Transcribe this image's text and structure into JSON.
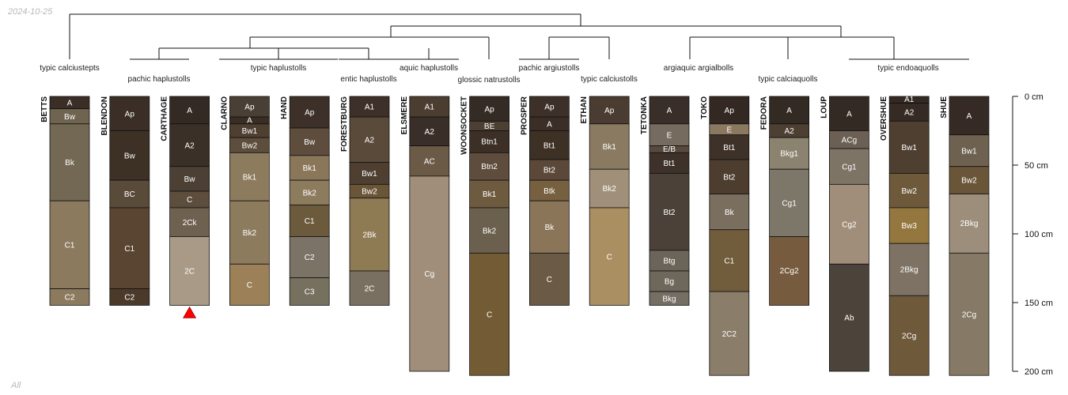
{
  "date": "2024-10-25",
  "footer": "All",
  "depth_axis": {
    "unit": "cm",
    "ticks": [
      {
        "value": 0,
        "label": "0 cm"
      },
      {
        "value": 50,
        "label": "50 cm"
      },
      {
        "value": 100,
        "label": "100 cm"
      },
      {
        "value": 150,
        "label": "150 cm"
      },
      {
        "value": 200,
        "label": "200 cm"
      }
    ],
    "max": 200
  },
  "taxa_labels": [
    "typic calciustepts",
    "pachic haplustolls",
    "typic haplustolls",
    "entic haplustolls",
    "aquic haplustolls",
    "glossic natrustolls",
    "pachic argiustolls",
    "typic calciustolls",
    "argiaquic argialbolls",
    "typic calciaquolls",
    "typic endoaquolls"
  ],
  "profiles": [
    {
      "name": "BETTS",
      "horizons": [
        {
          "name": "A",
          "top": 0,
          "bottom": 9,
          "color": "#3a2e26"
        },
        {
          "name": "Bw",
          "top": 9,
          "bottom": 20,
          "color": "#6f6450"
        },
        {
          "name": "Bk",
          "top": 20,
          "bottom": 76,
          "color": "#736853"
        },
        {
          "name": "C1",
          "top": 76,
          "bottom": 140,
          "color": "#8c7a5e"
        },
        {
          "name": "C2",
          "top": 140,
          "bottom": 152,
          "color": "#8c7a5e"
        }
      ]
    },
    {
      "name": "BLENDON",
      "horizons": [
        {
          "name": "Ap",
          "top": 0,
          "bottom": 25,
          "color": "#3a2e26"
        },
        {
          "name": "Bw",
          "top": 25,
          "bottom": 61,
          "color": "#3d3125"
        },
        {
          "name": "BC",
          "top": 61,
          "bottom": 81,
          "color": "#5a4a3a"
        },
        {
          "name": "C1",
          "top": 81,
          "bottom": 140,
          "color": "#5a4532"
        },
        {
          "name": "C2",
          "top": 140,
          "bottom": 152,
          "color": "#4b3a2a"
        }
      ]
    },
    {
      "name": "CARTHAGE",
      "horizons": [
        {
          "name": "A",
          "top": 0,
          "bottom": 20,
          "color": "#342a24"
        },
        {
          "name": "A2",
          "top": 20,
          "bottom": 51,
          "color": "#3a3028"
        },
        {
          "name": "Bw",
          "top": 51,
          "bottom": 69,
          "color": "#4b4033"
        },
        {
          "name": "C",
          "top": 69,
          "bottom": 81,
          "color": "#5c4d3c"
        },
        {
          "name": "2Ck",
          "top": 81,
          "bottom": 102,
          "color": "#6e6150"
        },
        {
          "name": "2C",
          "top": 102,
          "bottom": 152,
          "color": "#a89a86"
        }
      ]
    },
    {
      "name": "CLARNO",
      "horizons": [
        {
          "name": "Ap",
          "top": 0,
          "bottom": 15,
          "color": "#4a3f34"
        },
        {
          "name": "A",
          "top": 15,
          "bottom": 20,
          "color": "#3a2e24"
        },
        {
          "name": "Bw1",
          "top": 20,
          "bottom": 30,
          "color": "#4e3f31"
        },
        {
          "name": "Bw2",
          "top": 30,
          "bottom": 41,
          "color": "#5c4d3c"
        },
        {
          "name": "Bk1",
          "top": 41,
          "bottom": 76,
          "color": "#8d7b5e"
        },
        {
          "name": "Bk2",
          "top": 76,
          "bottom": 122,
          "color": "#8d7b5e"
        },
        {
          "name": "C",
          "top": 122,
          "bottom": 152,
          "color": "#9c8058"
        }
      ]
    },
    {
      "name": "HAND",
      "horizons": [
        {
          "name": "Ap",
          "top": 0,
          "bottom": 23,
          "color": "#3d3028"
        },
        {
          "name": "Bw",
          "top": 23,
          "bottom": 43,
          "color": "#5e4d3c"
        },
        {
          "name": "Bk1",
          "top": 43,
          "bottom": 61,
          "color": "#8a7658"
        },
        {
          "name": "Bk2",
          "top": 61,
          "bottom": 79,
          "color": "#8d7b5e"
        },
        {
          "name": "C1",
          "top": 79,
          "bottom": 102,
          "color": "#6b5a3c"
        },
        {
          "name": "C2",
          "top": 102,
          "bottom": 132,
          "color": "#7b7366"
        },
        {
          "name": "C3",
          "top": 132,
          "bottom": 152,
          "color": "#76705f"
        }
      ]
    },
    {
      "name": "FORESTBURG",
      "horizons": [
        {
          "name": "A1",
          "top": 0,
          "bottom": 15,
          "color": "#3d3028"
        },
        {
          "name": "A2",
          "top": 15,
          "bottom": 48,
          "color": "#5a4a3a"
        },
        {
          "name": "Bw1",
          "top": 48,
          "bottom": 64,
          "color": "#4e3f31"
        },
        {
          "name": "Bw2",
          "top": 64,
          "bottom": 74,
          "color": "#6b5538"
        },
        {
          "name": "2Bk",
          "top": 74,
          "bottom": 127,
          "color": "#8e7a53"
        },
        {
          "name": "2C",
          "top": 127,
          "bottom": 152,
          "color": "#7a7062"
        }
      ]
    },
    {
      "name": "ELSMERE",
      "horizons": [
        {
          "name": "A1",
          "top": 0,
          "bottom": 15,
          "color": "#4b3d30"
        },
        {
          "name": "A2",
          "top": 15,
          "bottom": 36,
          "color": "#3a2f28"
        },
        {
          "name": "AC",
          "top": 36,
          "bottom": 58,
          "color": "#6b5a46"
        },
        {
          "name": "Cg",
          "top": 58,
          "bottom": 200,
          "color": "#a08e7b"
        }
      ]
    },
    {
      "name": "WOONSOCKET",
      "horizons": [
        {
          "name": "Ap",
          "top": 0,
          "bottom": 18,
          "color": "#352b25"
        },
        {
          "name": "BE",
          "top": 18,
          "bottom": 25,
          "color": "#4d3f32"
        },
        {
          "name": "Btn1",
          "top": 25,
          "bottom": 41,
          "color": "#3c2f26"
        },
        {
          "name": "Btn2",
          "top": 41,
          "bottom": 61,
          "color": "#5e4d3c"
        },
        {
          "name": "Bk1",
          "top": 61,
          "bottom": 81,
          "color": "#6e5a3f"
        },
        {
          "name": "Bk2",
          "top": 81,
          "bottom": 114,
          "color": "#6b5f4e"
        },
        {
          "name": "C",
          "top": 114,
          "bottom": 203,
          "color": "#735c35"
        }
      ]
    },
    {
      "name": "PROSPER",
      "horizons": [
        {
          "name": "Ap",
          "top": 0,
          "bottom": 15,
          "color": "#3d3028"
        },
        {
          "name": "A",
          "top": 15,
          "bottom": 25,
          "color": "#3a2e26"
        },
        {
          "name": "Bt1",
          "top": 25,
          "bottom": 46,
          "color": "#3d3025"
        },
        {
          "name": "Bt2",
          "top": 46,
          "bottom": 61,
          "color": "#5b4838"
        },
        {
          "name": "Btk",
          "top": 61,
          "bottom": 76,
          "color": "#76603f"
        },
        {
          "name": "Bk",
          "top": 76,
          "bottom": 114,
          "color": "#8b7558"
        },
        {
          "name": "C",
          "top": 114,
          "bottom": 152,
          "color": "#6b5a45"
        }
      ]
    },
    {
      "name": "ETHAN",
      "horizons": [
        {
          "name": "Ap",
          "top": 0,
          "bottom": 20,
          "color": "#4a3c30"
        },
        {
          "name": "Bk1",
          "top": 20,
          "bottom": 53,
          "color": "#8b7a62"
        },
        {
          "name": "Bk2",
          "top": 53,
          "bottom": 81,
          "color": "#a09079"
        },
        {
          "name": "C",
          "top": 81,
          "bottom": 152,
          "color": "#a98f62"
        }
      ]
    },
    {
      "name": "TETONKA",
      "horizons": [
        {
          "name": "A",
          "top": 0,
          "bottom": 20,
          "color": "#3a2e28"
        },
        {
          "name": "E",
          "top": 20,
          "bottom": 36,
          "color": "#756b5e"
        },
        {
          "name": "E/B",
          "top": 36,
          "bottom": 41,
          "color": "#57493c"
        },
        {
          "name": "Bt1",
          "top": 41,
          "bottom": 56,
          "color": "#3d3129"
        },
        {
          "name": "Bt2",
          "top": 56,
          "bottom": 112,
          "color": "#4b4138"
        },
        {
          "name": "Btg",
          "top": 112,
          "bottom": 127,
          "color": "#6b6458"
        },
        {
          "name": "Bg",
          "top": 127,
          "bottom": 142,
          "color": "#6e675c"
        },
        {
          "name": "Bkg",
          "top": 142,
          "bottom": 152,
          "color": "#746e63"
        }
      ]
    },
    {
      "name": "TOKO",
      "horizons": [
        {
          "name": "Ap",
          "top": 0,
          "bottom": 20,
          "color": "#342922"
        },
        {
          "name": "E",
          "top": 20,
          "bottom": 28,
          "color": "#8a7860"
        },
        {
          "name": "Bt1",
          "top": 28,
          "bottom": 46,
          "color": "#3d3128"
        },
        {
          "name": "Bt2",
          "top": 46,
          "bottom": 71,
          "color": "#4d3d2f"
        },
        {
          "name": "Bk",
          "top": 71,
          "bottom": 97,
          "color": "#7a6e5e"
        },
        {
          "name": "C1",
          "top": 97,
          "bottom": 142,
          "color": "#715c3c"
        },
        {
          "name": "2C2",
          "top": 142,
          "bottom": 203,
          "color": "#8a7d6a"
        }
      ]
    },
    {
      "name": "FEDORA",
      "horizons": [
        {
          "name": "A",
          "top": 0,
          "bottom": 20,
          "color": "#342a24"
        },
        {
          "name": "A2",
          "top": 20,
          "bottom": 30,
          "color": "#4d3f32"
        },
        {
          "name": "Bkg1",
          "top": 30,
          "bottom": 53,
          "color": "#8c8270"
        },
        {
          "name": "Cg1",
          "top": 53,
          "bottom": 102,
          "color": "#7c7768"
        },
        {
          "name": "2Cg2",
          "top": 102,
          "bottom": 152,
          "color": "#765b3e"
        }
      ]
    },
    {
      "name": "LOUP",
      "horizons": [
        {
          "name": "A",
          "top": 0,
          "bottom": 25,
          "color": "#342a24"
        },
        {
          "name": "ACg",
          "top": 25,
          "bottom": 38,
          "color": "#6b6053"
        },
        {
          "name": "Cg1",
          "top": 38,
          "bottom": 64,
          "color": "#7e7466"
        },
        {
          "name": "Cg2",
          "top": 64,
          "bottom": 122,
          "color": "#a08e7a"
        },
        {
          "name": "Ab",
          "top": 122,
          "bottom": 200,
          "color": "#4c443b"
        }
      ]
    },
    {
      "name": "OVERSHUE",
      "horizons": [
        {
          "name": "A1",
          "top": 0,
          "bottom": 5,
          "color": "#332922"
        },
        {
          "name": "A2",
          "top": 5,
          "bottom": 18,
          "color": "#352b24"
        },
        {
          "name": "Bw1",
          "top": 18,
          "bottom": 56,
          "color": "#4e3f31"
        },
        {
          "name": "Bw2",
          "top": 56,
          "bottom": 81,
          "color": "#6e5a3b"
        },
        {
          "name": "Bw3",
          "top": 81,
          "bottom": 107,
          "color": "#94773f"
        },
        {
          "name": "2Bkg",
          "top": 107,
          "bottom": 145,
          "color": "#7d7263"
        },
        {
          "name": "2Cg",
          "top": 145,
          "bottom": 203,
          "color": "#6e5a3b"
        }
      ]
    },
    {
      "name": "SHUE",
      "horizons": [
        {
          "name": "A",
          "top": 0,
          "bottom": 28,
          "color": "#352b24"
        },
        {
          "name": "Bw1",
          "top": 28,
          "bottom": 51,
          "color": "#6e614f"
        },
        {
          "name": "Bw2",
          "top": 51,
          "bottom": 71,
          "color": "#6b5538"
        },
        {
          "name": "2Bkg",
          "top": 71,
          "bottom": 114,
          "color": "#9c8e7b"
        },
        {
          "name": "2Cg",
          "top": 114,
          "bottom": 203,
          "color": "#867a67"
        }
      ]
    }
  ],
  "marker": {
    "profile": "CARTHAGE",
    "color": "#ff0000"
  }
}
